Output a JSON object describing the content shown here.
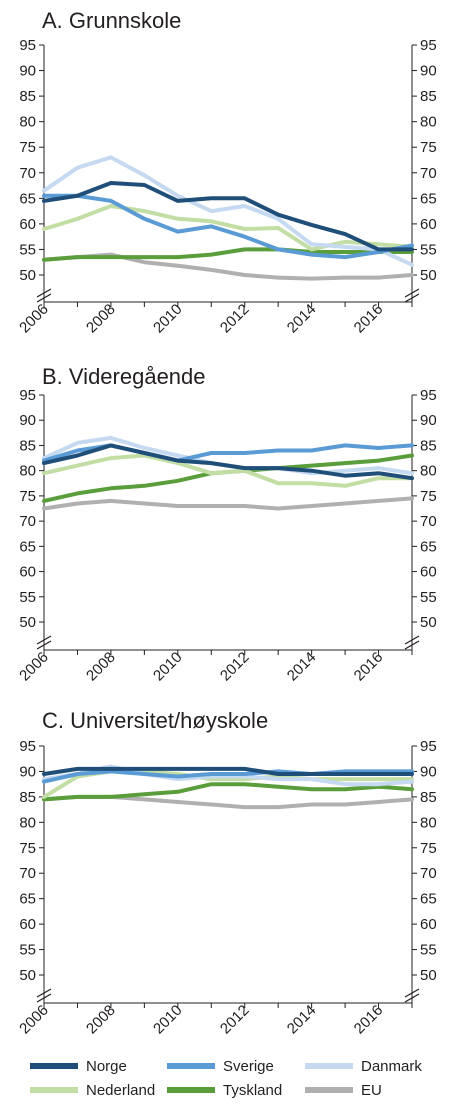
{
  "colors": {
    "Norge": "#1f4e79",
    "Sverige": "#5b9bd5",
    "Danmark": "#c5d9f1",
    "Nederland": "#c3dea5",
    "Tyskland": "#5a9e3c",
    "EU": "#b0b0b0",
    "axis": "#231f20"
  },
  "legend": {
    "entries": [
      {
        "name": "Norge",
        "color": "#1f4e79"
      },
      {
        "name": "Sverige",
        "color": "#5b9bd5"
      },
      {
        "name": "Danmark",
        "color": "#c5d9f1"
      },
      {
        "name": "Nederland",
        "color": "#c3dea5"
      },
      {
        "name": "Tyskland",
        "color": "#5a9e3c"
      },
      {
        "name": "EU",
        "color": "#b0b0b0"
      }
    ]
  },
  "chart_data": [
    {
      "type": "line",
      "title": "A. Grunnskole",
      "x": [
        2006,
        2007,
        2008,
        2009,
        2010,
        2011,
        2012,
        2013,
        2014,
        2015,
        2016,
        2017
      ],
      "x_ticks": [
        "2006",
        "2008",
        "2010",
        "2012",
        "2014",
        "2016"
      ],
      "y_ticks": [
        50,
        55,
        60,
        65,
        70,
        75,
        80,
        85,
        90,
        95
      ],
      "ylim": [
        50,
        95
      ],
      "axis_break": true,
      "grid": false,
      "series": [
        {
          "name": "Norge",
          "values": [
            64.5,
            65.5,
            68.0,
            67.6,
            64.5,
            65.0,
            65.0,
            61.8,
            59.8,
            58.0,
            55.0,
            55.0
          ]
        },
        {
          "name": "Sverige",
          "values": [
            65.5,
            65.5,
            64.5,
            61.0,
            58.5,
            59.5,
            57.5,
            55.0,
            54.0,
            53.5,
            54.5,
            55.8
          ]
        },
        {
          "name": "Danmark",
          "values": [
            66.5,
            71.0,
            73.0,
            69.5,
            65.5,
            62.5,
            63.5,
            61.0,
            56.0,
            55.5,
            55.0,
            52.0
          ]
        },
        {
          "name": "Nederland",
          "values": [
            59.0,
            61.0,
            63.5,
            62.5,
            61.0,
            60.5,
            59.0,
            59.2,
            55.0,
            56.5,
            56.0,
            55.5
          ]
        },
        {
          "name": "Tyskland",
          "values": [
            53.0,
            53.5,
            53.5,
            53.5,
            53.5,
            54.0,
            55.0,
            55.0,
            54.5,
            54.5,
            54.5,
            54.5
          ]
        },
        {
          "name": "EU",
          "values": [
            53.0,
            53.5,
            54.0,
            52.5,
            51.8,
            51.0,
            50.0,
            49.5,
            49.3,
            49.5,
            49.5,
            50.0
          ]
        }
      ]
    },
    {
      "type": "line",
      "title": "B. Videregående",
      "x": [
        2006,
        2007,
        2008,
        2009,
        2010,
        2011,
        2012,
        2013,
        2014,
        2015,
        2016,
        2017
      ],
      "x_ticks": [
        "2006",
        "2008",
        "2010",
        "2012",
        "2014",
        "2016"
      ],
      "y_ticks": [
        50,
        55,
        60,
        65,
        70,
        75,
        80,
        85,
        90,
        95
      ],
      "ylim": [
        50,
        95
      ],
      "axis_break": true,
      "grid": false,
      "series": [
        {
          "name": "Norge",
          "values": [
            81.5,
            83.0,
            85.0,
            83.5,
            82.0,
            81.5,
            80.5,
            80.5,
            80.0,
            79.0,
            79.5,
            78.5
          ]
        },
        {
          "name": "Sverige",
          "values": [
            82.0,
            84.0,
            85.0,
            83.5,
            82.0,
            83.5,
            83.5,
            84.0,
            84.0,
            85.0,
            84.5,
            85.0
          ]
        },
        {
          "name": "Danmark",
          "values": [
            82.5,
            85.5,
            86.5,
            84.5,
            83.0,
            81.5,
            80.5,
            80.5,
            79.5,
            80.0,
            80.5,
            79.5
          ]
        },
        {
          "name": "Nederland",
          "values": [
            79.5,
            81.0,
            82.5,
            83.0,
            81.5,
            79.5,
            80.0,
            77.5,
            77.5,
            77.0,
            78.5,
            78.5
          ]
        },
        {
          "name": "Tyskland",
          "values": [
            74.0,
            75.5,
            76.5,
            77.0,
            78.0,
            79.5,
            80.0,
            80.5,
            81.0,
            81.5,
            82.0,
            83.0
          ]
        },
        {
          "name": "EU",
          "values": [
            72.5,
            73.5,
            74.0,
            73.5,
            73.0,
            73.0,
            73.0,
            72.5,
            73.0,
            73.5,
            74.0,
            74.5
          ]
        }
      ]
    },
    {
      "type": "line",
      "title": "C. Universitet/høyskole",
      "x": [
        2006,
        2007,
        2008,
        2009,
        2010,
        2011,
        2012,
        2013,
        2014,
        2015,
        2016,
        2017
      ],
      "x_ticks": [
        "2006",
        "2008",
        "2010",
        "2012",
        "2014",
        "2016"
      ],
      "y_ticks": [
        50,
        55,
        60,
        65,
        70,
        75,
        80,
        85,
        90,
        95
      ],
      "ylim": [
        50,
        95
      ],
      "axis_break": true,
      "grid": false,
      "series": [
        {
          "name": "Norge",
          "values": [
            89.5,
            90.5,
            90.5,
            90.5,
            90.5,
            90.5,
            90.5,
            89.5,
            89.5,
            89.5,
            89.5,
            89.5
          ]
        },
        {
          "name": "Sverige",
          "values": [
            88.0,
            89.5,
            90.0,
            89.5,
            89.0,
            89.5,
            89.5,
            90.0,
            89.5,
            90.0,
            90.0,
            90.0
          ]
        },
        {
          "name": "Danmark",
          "values": [
            88.5,
            89.5,
            91.0,
            89.5,
            88.5,
            89.0,
            89.0,
            88.5,
            88.5,
            87.5,
            87.5,
            88.0
          ]
        },
        {
          "name": "Nederland",
          "values": [
            85.0,
            89.0,
            90.0,
            90.0,
            89.5,
            88.5,
            88.5,
            89.0,
            88.5,
            88.5,
            88.5,
            88.5
          ]
        },
        {
          "name": "Tyskland",
          "values": [
            84.5,
            85.0,
            85.0,
            85.5,
            86.0,
            87.5,
            87.5,
            87.0,
            86.5,
            86.5,
            87.0,
            86.5
          ]
        },
        {
          "name": "EU",
          "values": [
            84.5,
            85.0,
            85.0,
            84.5,
            84.0,
            83.5,
            83.0,
            83.0,
            83.5,
            83.5,
            84.0,
            84.5
          ]
        }
      ]
    }
  ]
}
